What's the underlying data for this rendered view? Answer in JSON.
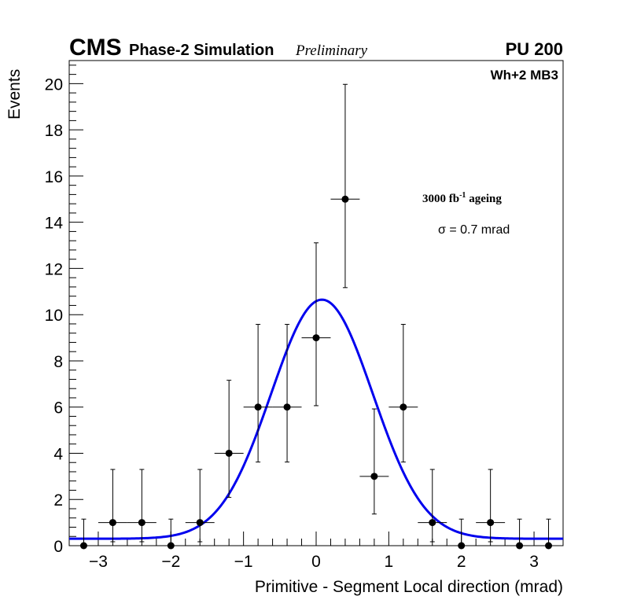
{
  "chart_data": {
    "type": "scatter",
    "header": {
      "experiment": "CMS",
      "subtitle": "Phase-2 Simulation",
      "status": "Preliminary",
      "pileup": "PU 200"
    },
    "region_label": "Wh+2 MB3",
    "ageing_label": {
      "prefix": "3000 fb",
      "superscript": "-1",
      "suffix": " ageing"
    },
    "fit_label": "σ = 0.7 mrad",
    "xlabel": "Primitive - Segment Local direction (mrad)",
    "ylabel": "Events",
    "xlim": [
      -3.4,
      3.4
    ],
    "ylim": [
      0,
      21
    ],
    "xticks": [
      -3,
      -2,
      -1,
      0,
      1,
      2,
      3
    ],
    "xtick_labels": [
      "−3",
      "−2",
      "−1",
      "0",
      "1",
      "2",
      "3"
    ],
    "yticks": [
      0,
      2,
      4,
      6,
      8,
      10,
      12,
      14,
      16,
      18,
      20
    ],
    "ytick_labels": [
      "0",
      "2",
      "4",
      "6",
      "8",
      "10",
      "12",
      "14",
      "16",
      "18",
      "20"
    ],
    "bin_width": 0.4,
    "series": [
      {
        "name": "Simulation",
        "x": [
          -3.2,
          -2.8,
          -2.4,
          -2.0,
          -1.6,
          -1.2,
          -0.8,
          -0.4,
          0.0,
          0.4,
          0.8,
          1.2,
          1.6,
          2.0,
          2.4,
          2.8,
          3.2
        ],
        "y": [
          0,
          1,
          1,
          0,
          1,
          4,
          6,
          6,
          9,
          15,
          3,
          6,
          1,
          0,
          1,
          0,
          0
        ],
        "yerr_low": [
          0,
          0.83,
          0.83,
          0,
          0.83,
          1.91,
          2.38,
          2.38,
          2.94,
          3.83,
          1.63,
          2.38,
          0.83,
          0,
          0.83,
          0,
          0
        ],
        "yerr_high": [
          1.15,
          2.3,
          2.3,
          1.15,
          2.3,
          3.16,
          3.58,
          3.58,
          4.11,
          4.97,
          2.92,
          3.58,
          2.3,
          1.15,
          2.3,
          1.15,
          1.15
        ]
      }
    ],
    "fit": {
      "name": "Gaussian fit",
      "function": "gaussian",
      "amplitude": 10.35,
      "mean": 0.08,
      "sigma": 0.7,
      "constant": 0.3,
      "color": "#0000ee"
    },
    "marker_color": "#000000"
  }
}
